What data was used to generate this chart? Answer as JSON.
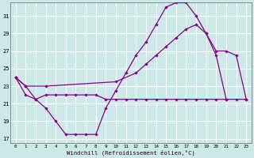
{
  "background_color": "#cce8e8",
  "grid_color": "#ffffff",
  "line_color": "#880088",
  "xlabel": "Windchill (Refroidissement éolien,°C)",
  "xlim": [
    -0.5,
    23.5
  ],
  "ylim": [
    16.5,
    32.5
  ],
  "yticks": [
    17,
    19,
    21,
    23,
    25,
    27,
    29,
    31
  ],
  "xticks": [
    0,
    1,
    2,
    3,
    4,
    5,
    6,
    7,
    8,
    9,
    10,
    11,
    12,
    13,
    14,
    15,
    16,
    17,
    18,
    19,
    20,
    21,
    22,
    23
  ],
  "line1_x": [
    0,
    1,
    2,
    3,
    4,
    5,
    6,
    7,
    8,
    9,
    10,
    11,
    12,
    13,
    14,
    15,
    16,
    17,
    18,
    19,
    20,
    21
  ],
  "line1_y": [
    24.0,
    23.0,
    21.5,
    20.5,
    19.0,
    17.5,
    17.5,
    17.5,
    17.5,
    20.5,
    22.5,
    24.5,
    26.5,
    28.0,
    30.0,
    32.0,
    32.5,
    32.5,
    31.0,
    29.0,
    26.5,
    21.5
  ],
  "line2_x": [
    0,
    1,
    3,
    10,
    12,
    13,
    14,
    15,
    16,
    17,
    18,
    19,
    20,
    21,
    22,
    23
  ],
  "line2_y": [
    24.0,
    23.0,
    23.0,
    23.5,
    24.5,
    25.5,
    26.5,
    27.5,
    28.5,
    29.5,
    30.0,
    29.0,
    27.0,
    27.0,
    26.5,
    21.5
  ],
  "line3_x": [
    0,
    1,
    2,
    3,
    4,
    5,
    6,
    7,
    8,
    9,
    10,
    11,
    12,
    13,
    14,
    15,
    16,
    17,
    18,
    19,
    20,
    21,
    22,
    23
  ],
  "line3_y": [
    24.0,
    22.0,
    21.5,
    22.0,
    22.0,
    22.0,
    22.0,
    22.0,
    22.0,
    21.5,
    21.5,
    21.5,
    21.5,
    21.5,
    21.5,
    21.5,
    21.5,
    21.5,
    21.5,
    21.5,
    21.5,
    21.5,
    21.5,
    21.5
  ]
}
